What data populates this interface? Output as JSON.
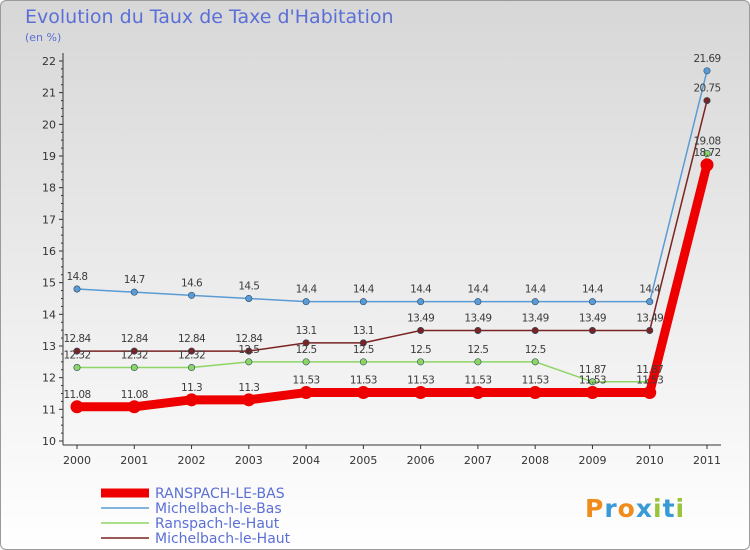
{
  "title": "Evolution du Taux de Taxe d'Habitation",
  "subtitle": "(en %)",
  "brand": {
    "text": "Proxiti",
    "colors": [
      "#f08c1c",
      "#3a9ad6",
      "#f08c1c",
      "#3a9ad6",
      "#9bc43a",
      "#3a9ad6",
      "#9bc43a"
    ]
  },
  "chart_data": {
    "type": "line",
    "title": "Evolution du Taux de Taxe d'Habitation",
    "ylabel": "(en %)",
    "xlabel": "",
    "ylim": [
      10,
      22
    ],
    "yticks": [
      10,
      11,
      12,
      13,
      14,
      15,
      16,
      17,
      18,
      19,
      20,
      21,
      22
    ],
    "grid": false,
    "legend": "bottom-left",
    "x": [
      2000,
      2001,
      2002,
      2003,
      2004,
      2005,
      2006,
      2007,
      2008,
      2009,
      2010,
      2011
    ],
    "series": [
      {
        "name": "RANSPACH-LE-BAS",
        "color": "#ee0000",
        "emphasis": true,
        "values": [
          11.08,
          11.08,
          11.3,
          11.3,
          11.53,
          11.53,
          11.53,
          11.53,
          11.53,
          11.53,
          11.53,
          18.72
        ],
        "labels": [
          "11.08",
          "11.08",
          "11.3",
          "11.3",
          "11.53",
          "11.53",
          "11.53",
          "11.53",
          "11.53",
          "11.53",
          "11.53",
          "18.72"
        ]
      },
      {
        "name": "Michelbach-le-Bas",
        "color": "#5b9bd5",
        "emphasis": false,
        "values": [
          14.8,
          14.7,
          14.6,
          14.5,
          14.4,
          14.4,
          14.4,
          14.4,
          14.4,
          14.4,
          14.4,
          21.69
        ],
        "labels": [
          "14.8",
          "14.7",
          "14.6",
          "14.5",
          "14.4",
          "14.4",
          "14.4",
          "14.4",
          "14.4",
          "14.4",
          "14.4",
          "21.69"
        ]
      },
      {
        "name": "Ranspach-le-Haut",
        "color": "#8dd663",
        "emphasis": false,
        "values": [
          12.32,
          12.32,
          12.32,
          12.5,
          12.5,
          12.5,
          12.5,
          12.5,
          12.5,
          11.87,
          11.87,
          19.08
        ],
        "labels": [
          "12.32",
          "12.32",
          "12.32",
          "12.5",
          "12.5",
          "12.5",
          "12.5",
          "12.5",
          "12.5",
          "11.87",
          "11.87",
          "19.08"
        ]
      },
      {
        "name": "Michelbach-le-Haut",
        "color": "#7a2323",
        "emphasis": false,
        "values": [
          12.84,
          12.84,
          12.84,
          12.84,
          13.1,
          13.1,
          13.49,
          13.49,
          13.49,
          13.49,
          13.49,
          20.75
        ],
        "labels": [
          "12.84",
          "12.84",
          "12.84",
          "12.84",
          "13.1",
          "13.1",
          "13.49",
          "13.49",
          "13.49",
          "13.49",
          "13.49",
          "20.75"
        ]
      }
    ]
  }
}
